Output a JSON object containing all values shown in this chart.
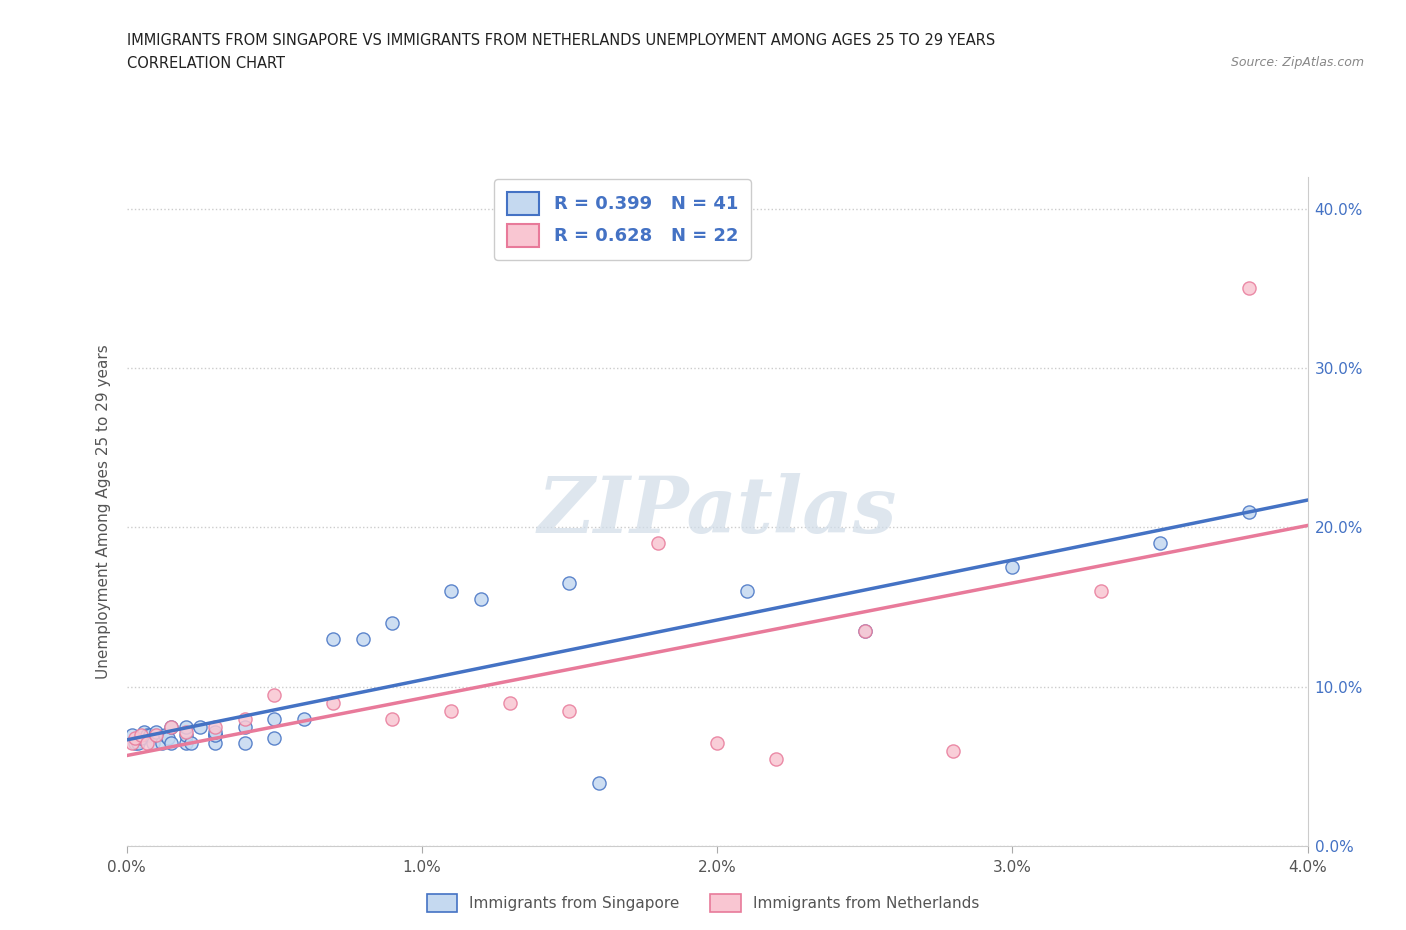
{
  "title_line1": "IMMIGRANTS FROM SINGAPORE VS IMMIGRANTS FROM NETHERLANDS UNEMPLOYMENT AMONG AGES 25 TO 29 YEARS",
  "title_line2": "CORRELATION CHART",
  "source_text": "Source: ZipAtlas.com",
  "ylabel": "Unemployment Among Ages 25 to 29 years",
  "xmin": 0.0,
  "xmax": 0.04,
  "ymin": 0.0,
  "ymax": 0.42,
  "yticks": [
    0.0,
    0.1,
    0.2,
    0.3,
    0.4
  ],
  "ytick_labels": [
    "0.0%",
    "10.0%",
    "20.0%",
    "30.0%",
    "40.0%"
  ],
  "xticks": [
    0.0,
    0.01,
    0.02,
    0.03,
    0.04
  ],
  "xtick_labels": [
    "0.0%",
    "1.0%",
    "2.0%",
    "3.0%",
    "4.0%"
  ],
  "singapore_fill_color": "#c5d9f0",
  "singapore_edge_color": "#4472c4",
  "netherlands_fill_color": "#f9c6d2",
  "netherlands_edge_color": "#e87a9a",
  "singapore_line_color": "#4472c4",
  "netherlands_line_color": "#e87a9a",
  "watermark_text": "ZIPatlas",
  "legend_label1": "R = 0.399   N = 41",
  "legend_label2": "R = 0.628   N = 22",
  "legend_bottom1": "Immigrants from Singapore",
  "legend_bottom2": "Immigrants from Netherlands",
  "singapore_x": [
    0.0002,
    0.0003,
    0.0004,
    0.0005,
    0.0006,
    0.0007,
    0.0008,
    0.0009,
    0.001,
    0.001,
    0.0012,
    0.0013,
    0.0014,
    0.0015,
    0.0015,
    0.002,
    0.002,
    0.002,
    0.0022,
    0.0025,
    0.003,
    0.003,
    0.003,
    0.003,
    0.004,
    0.004,
    0.005,
    0.005,
    0.006,
    0.007,
    0.008,
    0.009,
    0.011,
    0.012,
    0.015,
    0.016,
    0.021,
    0.025,
    0.03,
    0.035,
    0.038
  ],
  "singapore_y": [
    0.07,
    0.065,
    0.065,
    0.068,
    0.072,
    0.07,
    0.07,
    0.065,
    0.07,
    0.072,
    0.065,
    0.07,
    0.068,
    0.065,
    0.075,
    0.065,
    0.07,
    0.075,
    0.065,
    0.075,
    0.07,
    0.065,
    0.07,
    0.072,
    0.065,
    0.075,
    0.068,
    0.08,
    0.08,
    0.13,
    0.13,
    0.14,
    0.16,
    0.155,
    0.165,
    0.04,
    0.16,
    0.135,
    0.175,
    0.19,
    0.21
  ],
  "netherlands_x": [
    0.0002,
    0.0003,
    0.0005,
    0.0007,
    0.001,
    0.0015,
    0.002,
    0.003,
    0.004,
    0.005,
    0.007,
    0.009,
    0.011,
    0.013,
    0.015,
    0.018,
    0.02,
    0.022,
    0.025,
    0.028,
    0.033,
    0.038
  ],
  "netherlands_y": [
    0.065,
    0.068,
    0.07,
    0.065,
    0.07,
    0.075,
    0.072,
    0.075,
    0.08,
    0.095,
    0.09,
    0.08,
    0.085,
    0.09,
    0.085,
    0.19,
    0.065,
    0.055,
    0.135,
    0.06,
    0.16,
    0.35
  ]
}
